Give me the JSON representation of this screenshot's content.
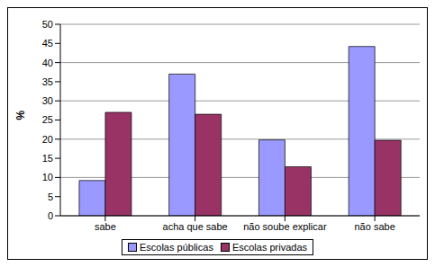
{
  "chart_data": {
    "type": "bar",
    "y_label": "%",
    "categories": [
      "sabe",
      "acha que sabe",
      "não soube explicar",
      "não sabe"
    ],
    "series": [
      {
        "name": "Escolas públicas",
        "color": "#9999ff",
        "values": [
          9.2,
          37,
          19.8,
          44.2
        ]
      },
      {
        "name": "Escolas privadas",
        "color": "#993366",
        "values": [
          27,
          26.5,
          12.8,
          19.7
        ]
      }
    ],
    "ylim": [
      0,
      50
    ],
    "yticks": [
      0,
      5,
      10,
      15,
      20,
      25,
      30,
      35,
      40,
      45,
      50
    ],
    "grid": true,
    "legend": "bottom"
  }
}
